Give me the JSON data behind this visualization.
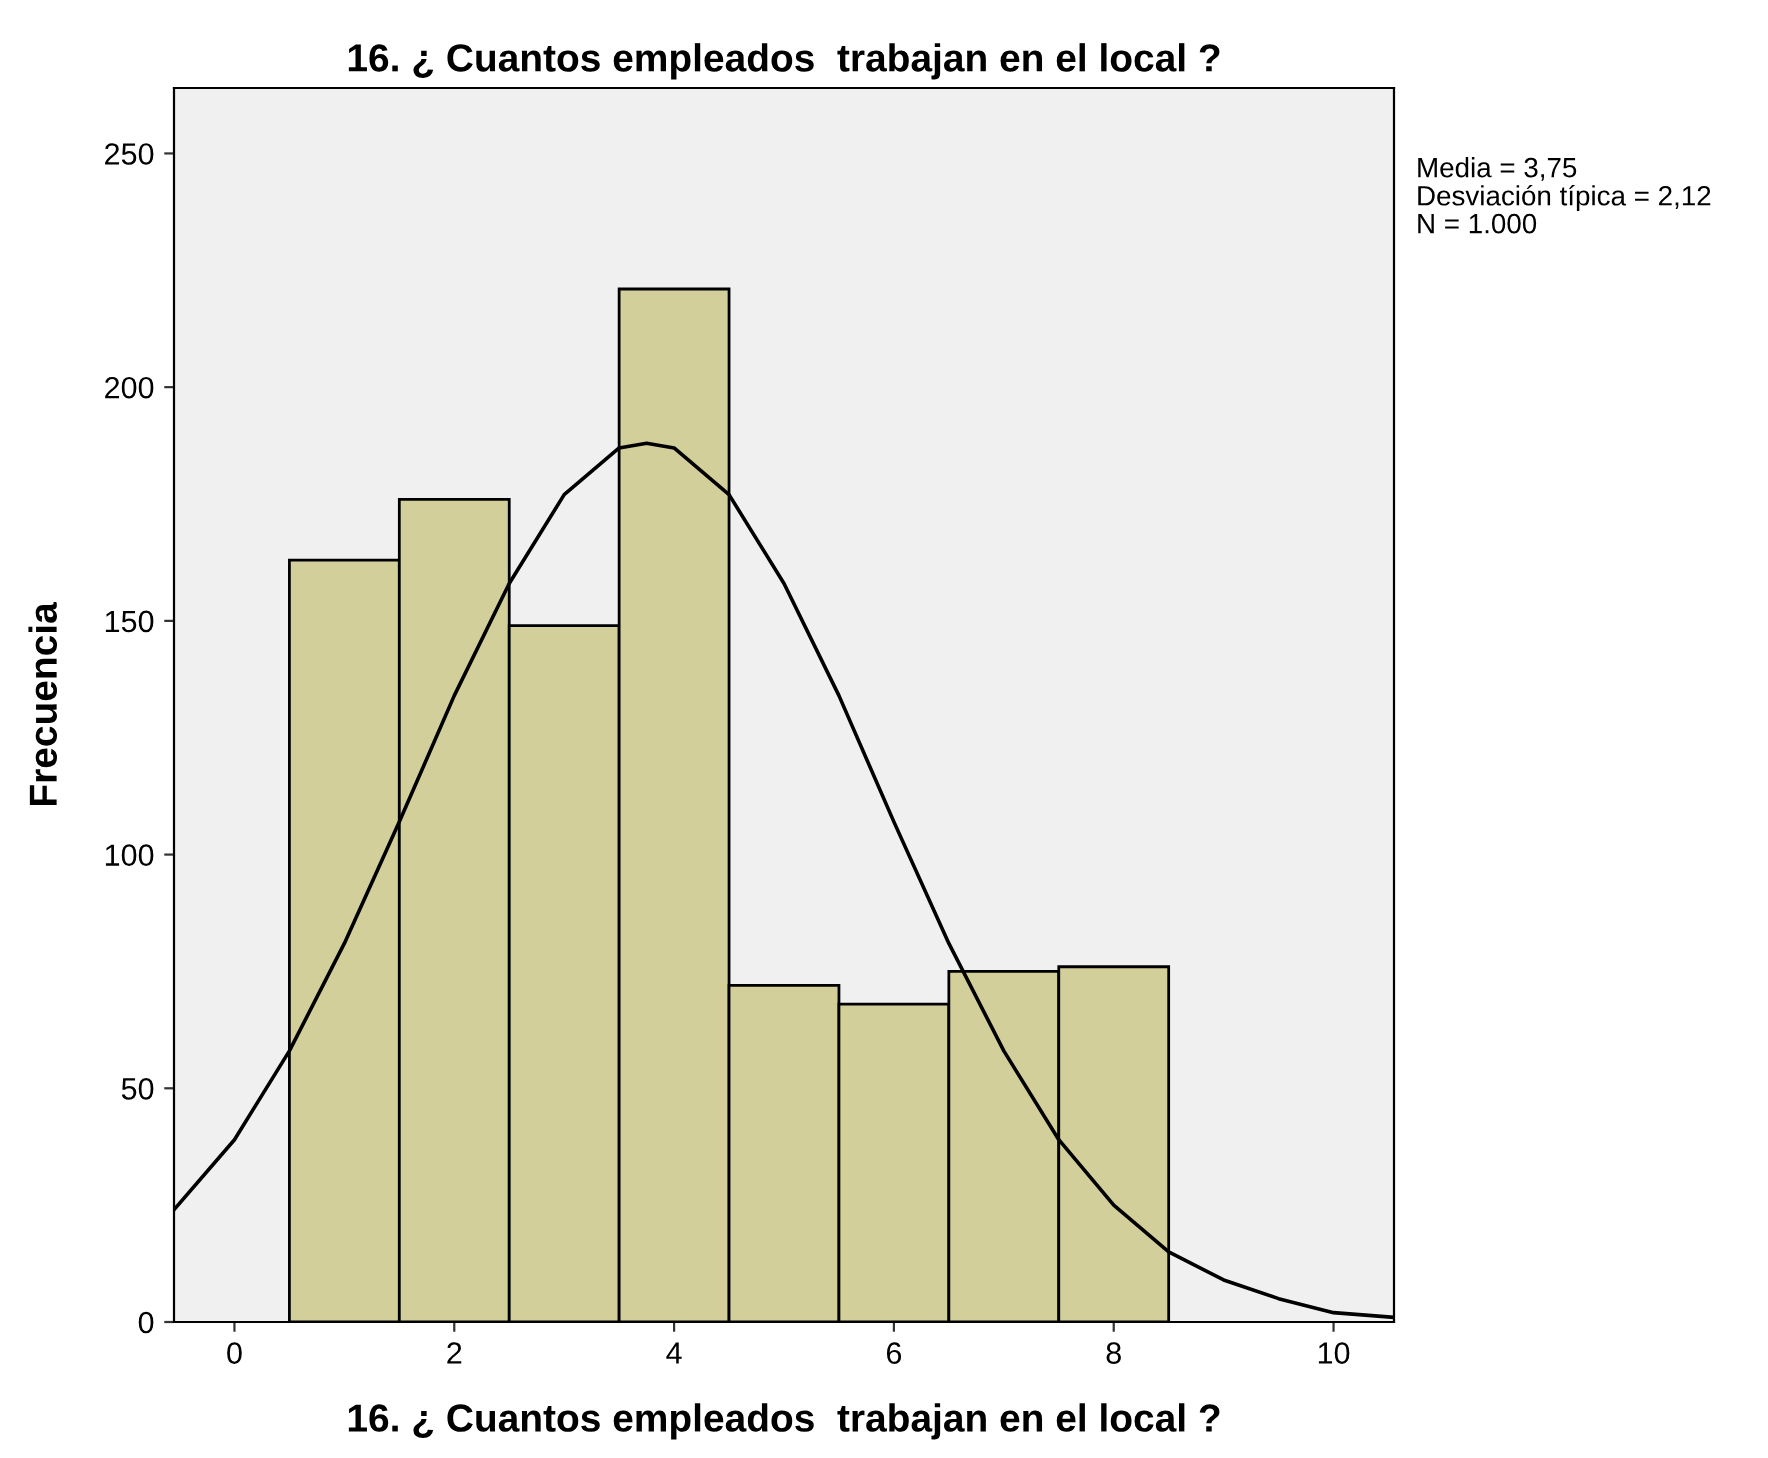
{
  "chart_data": {
    "type": "histogram",
    "title": "16. ¿ Cuantos empleados  trabajan en el local ?",
    "xlabel": "16. ¿ Cuantos empleados  trabajan en el local ?",
    "ylabel": "Frecuencia",
    "bins": [
      0.5,
      1.5,
      2.5,
      3.5,
      4.5,
      5.5,
      6.5,
      7.5,
      8.5
    ],
    "values": [
      163,
      176,
      149,
      221,
      72,
      68,
      75,
      76
    ],
    "color": "#d3cf9b",
    "series": [
      {
        "type": "line",
        "color": "#000000",
        "x": [
          -0.55,
          0,
          0.5,
          1,
          1.5,
          2,
          2.5,
          3,
          3.5,
          3.75,
          4,
          4.5,
          5,
          5.5,
          6,
          6.5,
          7,
          7.5,
          8,
          8.5,
          9,
          9.5,
          10,
          10.55
        ],
        "values": [
          24,
          39,
          58,
          81,
          107,
          134,
          158,
          177,
          187,
          188,
          187,
          177,
          158,
          134,
          107,
          81,
          58,
          39,
          25,
          15,
          9,
          5,
          2,
          1
        ]
      }
    ],
    "xlim": [
      -0.55,
      10.55
    ],
    "xticks": [
      0,
      2,
      4,
      6,
      8,
      10
    ],
    "ylim": [
      0,
      264
    ],
    "yticks": [
      0,
      50,
      100,
      150,
      200,
      250
    ],
    "grid": false,
    "legend": false,
    "annotations": [
      "Media = 3,75",
      "Desviación típica = 2,12",
      "N = 1.000"
    ]
  }
}
